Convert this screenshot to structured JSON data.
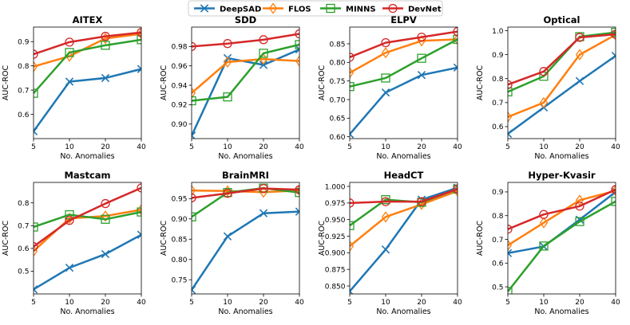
{
  "figure": {
    "legend": [
      {
        "name": "DeepSAD",
        "color": "#1f77b4",
        "marker": "x"
      },
      {
        "name": "FLOS",
        "color": "#ff7f0e",
        "marker": "diamond"
      },
      {
        "name": "MINNS",
        "color": "#2ca02c",
        "marker": "square"
      },
      {
        "name": "DevNet",
        "color": "#d62728",
        "marker": "circle"
      }
    ]
  },
  "chart_data": [
    {
      "type": "line",
      "title": "AITEX",
      "xlabel": "No. Anomalies",
      "ylabel": "AUC-ROC",
      "categories": [
        "5",
        "10",
        "20",
        "40"
      ],
      "ylim": [
        0.5,
        0.96
      ],
      "yticks": [
        "0.6",
        "0.7",
        "0.8",
        "0.9"
      ],
      "series": [
        {
          "name": "DeepSAD",
          "values": [
            0.53,
            0.735,
            0.75,
            0.787
          ]
        },
        {
          "name": "FLOS",
          "values": [
            0.797,
            0.84,
            0.913,
            0.932
          ]
        },
        {
          "name": "MINNS",
          "values": [
            0.687,
            0.855,
            0.885,
            0.908
          ]
        },
        {
          "name": "DevNet",
          "values": [
            0.848,
            0.898,
            0.922,
            0.938
          ]
        }
      ]
    },
    {
      "type": "line",
      "title": "SDD",
      "xlabel": "No. Anomalies",
      "ylabel": "AUC-ROC",
      "categories": [
        "5",
        "10",
        "20",
        "40"
      ],
      "ylim": [
        0.885,
        1.0
      ],
      "yticks": [
        "0.90",
        "0.92",
        "0.94",
        "0.96",
        "0.98"
      ],
      "series": [
        {
          "name": "DeepSAD",
          "values": [
            0.888,
            0.968,
            0.961,
            0.977
          ]
        },
        {
          "name": "FLOS",
          "values": [
            0.932,
            0.964,
            0.967,
            0.965
          ]
        },
        {
          "name": "MINNS",
          "values": [
            0.924,
            0.928,
            0.973,
            0.982
          ]
        },
        {
          "name": "DevNet",
          "values": [
            0.98,
            0.983,
            0.987,
            0.993
          ]
        }
      ]
    },
    {
      "type": "line",
      "title": "ELPV",
      "xlabel": "No. Anomalies",
      "ylabel": "AUC-ROC",
      "categories": [
        "5",
        "10",
        "20",
        "40"
      ],
      "ylim": [
        0.595,
        0.895
      ],
      "yticks": [
        "0.60",
        "0.65",
        "0.70",
        "0.75",
        "0.80",
        "0.85"
      ],
      "series": [
        {
          "name": "DeepSAD",
          "values": [
            0.607,
            0.719,
            0.766,
            0.786
          ]
        },
        {
          "name": "FLOS",
          "values": [
            0.772,
            0.826,
            0.858,
            0.862
          ]
        },
        {
          "name": "MINNS",
          "values": [
            0.735,
            0.758,
            0.811,
            0.862
          ]
        },
        {
          "name": "DevNet",
          "values": [
            0.814,
            0.853,
            0.868,
            0.883
          ]
        }
      ]
    },
    {
      "type": "line",
      "title": "Optical",
      "xlabel": "No. Anomalies",
      "ylabel": "AUC-ROC",
      "categories": [
        "5",
        "10",
        "20",
        "40"
      ],
      "ylim": [
        0.55,
        1.015
      ],
      "yticks": [
        "0.6",
        "0.7",
        "0.8",
        "0.9",
        "1.0"
      ],
      "series": [
        {
          "name": "DeepSAD",
          "values": [
            0.57,
            0.68,
            0.79,
            0.895
          ]
        },
        {
          "name": "FLOS",
          "values": [
            0.64,
            0.7,
            0.9,
            0.983
          ]
        },
        {
          "name": "MINNS",
          "values": [
            0.745,
            0.81,
            0.975,
            0.993
          ]
        },
        {
          "name": "DevNet",
          "values": [
            0.775,
            0.83,
            0.972,
            0.985
          ]
        }
      ]
    },
    {
      "type": "line",
      "title": "Mastcam",
      "xlabel": "No. Anomalies",
      "ylabel": "AUC-ROC",
      "categories": [
        "5",
        "10",
        "20",
        "40"
      ],
      "ylim": [
        0.4,
        0.89
      ],
      "yticks": [
        "0.5",
        "0.6",
        "0.7",
        "0.8"
      ],
      "series": [
        {
          "name": "DeepSAD",
          "values": [
            0.42,
            0.515,
            0.575,
            0.66
          ]
        },
        {
          "name": "FLOS",
          "values": [
            0.588,
            0.732,
            0.742,
            0.77
          ]
        },
        {
          "name": "MINNS",
          "values": [
            0.694,
            0.748,
            0.728,
            0.76
          ]
        },
        {
          "name": "DevNet",
          "values": [
            0.608,
            0.723,
            0.797,
            0.866
          ]
        }
      ]
    },
    {
      "type": "line",
      "title": "BrainMRI",
      "xlabel": "No. Anomalies",
      "ylabel": "AUC-ROC",
      "categories": [
        "5",
        "10",
        "20",
        "40"
      ],
      "ylim": [
        0.715,
        0.99
      ],
      "yticks": [
        "0.75",
        "0.80",
        "0.85",
        "0.90",
        "0.95"
      ],
      "series": [
        {
          "name": "DeepSAD",
          "values": [
            0.725,
            0.857,
            0.914,
            0.918
          ]
        },
        {
          "name": "FLOS",
          "values": [
            0.97,
            0.969,
            0.966,
            0.97
          ]
        },
        {
          "name": "MINNS",
          "values": [
            0.905,
            0.965,
            0.976,
            0.965
          ]
        },
        {
          "name": "DevNet",
          "values": [
            0.952,
            0.963,
            0.975,
            0.972
          ]
        }
      ]
    },
    {
      "type": "line",
      "title": "HeadCT",
      "xlabel": "No. Anomalies",
      "ylabel": "AUC-ROC",
      "categories": [
        "5",
        "10",
        "20",
        "40"
      ],
      "ylim": [
        0.838,
        1.006
      ],
      "yticks": [
        "0.850",
        "0.875",
        "0.900",
        "0.925",
        "0.950",
        "0.975",
        "1.000"
      ],
      "series": [
        {
          "name": "DeepSAD",
          "values": [
            0.842,
            0.905,
            0.98,
            0.998
          ]
        },
        {
          "name": "FLOS",
          "values": [
            0.91,
            0.954,
            0.973,
            0.993
          ]
        },
        {
          "name": "MINNS",
          "values": [
            0.941,
            0.98,
            0.976,
            0.996
          ]
        },
        {
          "name": "DevNet",
          "values": [
            0.975,
            0.977,
            0.977,
            0.996
          ]
        }
      ]
    },
    {
      "type": "line",
      "title": "Hyper-Kvasir",
      "xlabel": "No. Anomalies",
      "ylabel": "AUC-ROC",
      "categories": [
        "5",
        "10",
        "20",
        "40"
      ],
      "ylim": [
        0.47,
        0.94
      ],
      "yticks": [
        "0.5",
        "0.6",
        "0.7",
        "0.8",
        "0.9"
      ],
      "series": [
        {
          "name": "DeepSAD",
          "values": [
            0.642,
            0.67,
            0.783,
            0.9
          ]
        },
        {
          "name": "FLOS",
          "values": [
            0.675,
            0.77,
            0.865,
            0.905
          ]
        },
        {
          "name": "MINNS",
          "values": [
            0.48,
            0.672,
            0.775,
            0.86
          ]
        },
        {
          "name": "DevNet",
          "values": [
            0.743,
            0.805,
            0.84,
            0.91
          ]
        }
      ]
    }
  ]
}
